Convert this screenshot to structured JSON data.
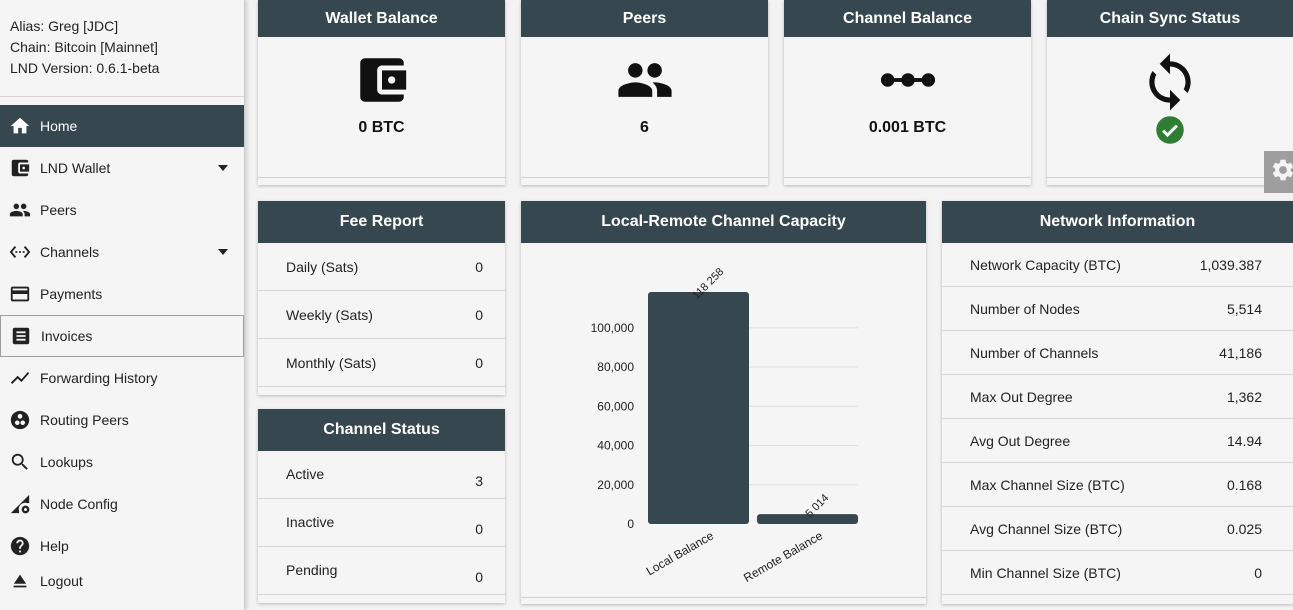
{
  "node": {
    "alias": "Alias: Greg [JDC]",
    "chain": "Chain: Bitcoin [Mainnet]",
    "version": "LND Version: 0.6.1-beta"
  },
  "nav": [
    {
      "label": "Home",
      "icon": "home-icon"
    },
    {
      "label": "LND Wallet",
      "icon": "wallet-icon"
    },
    {
      "label": "Peers",
      "icon": "people-icon"
    },
    {
      "label": "Channels",
      "icon": "channels-icon"
    },
    {
      "label": "Payments",
      "icon": "credit-card-icon"
    },
    {
      "label": "Invoices",
      "icon": "receipt-icon"
    },
    {
      "label": "Forwarding History",
      "icon": "timeline-icon"
    },
    {
      "label": "Routing Peers",
      "icon": "routing-peers-icon"
    },
    {
      "label": "Lookups",
      "icon": "search-icon"
    },
    {
      "label": "Node Config",
      "icon": "node-config-icon"
    },
    {
      "label": "Help",
      "icon": "help-icon"
    },
    {
      "label": "Logout",
      "icon": "eject-icon"
    }
  ],
  "tiles": {
    "wallet": {
      "title": "Wallet Balance",
      "value": "0 BTC"
    },
    "peers": {
      "title": "Peers",
      "value": "6"
    },
    "channel": {
      "title": "Channel Balance",
      "value": "0.001 BTC"
    },
    "sync": {
      "title": "Chain Sync Status",
      "status_color": "#2e7d32"
    }
  },
  "fee_report": {
    "title": "Fee Report",
    "rows": [
      {
        "label": "Daily (Sats)",
        "value": "0"
      },
      {
        "label": "Weekly (Sats)",
        "value": "0"
      },
      {
        "label": "Monthly (Sats)",
        "value": "0"
      }
    ]
  },
  "channel_status": {
    "title": "Channel Status",
    "rows": [
      {
        "label": "Active",
        "value": "3"
      },
      {
        "label": "Inactive",
        "value": "0"
      },
      {
        "label": "Pending",
        "value": "0"
      }
    ]
  },
  "capacity": {
    "title": "Local-Remote Channel Capacity"
  },
  "network": {
    "title": "Network Information",
    "rows": [
      {
        "label": "Network Capacity (BTC)",
        "value": "1,039.387"
      },
      {
        "label": "Number of Nodes",
        "value": "5,514"
      },
      {
        "label": "Number of Channels",
        "value": "41,186"
      },
      {
        "label": "Max Out Degree",
        "value": "1,362"
      },
      {
        "label": "Avg Out Degree",
        "value": "14.94"
      },
      {
        "label": "Max Channel Size (BTC)",
        "value": "0.168"
      },
      {
        "label": "Avg Channel Size (BTC)",
        "value": "0.025"
      },
      {
        "label": "Min Channel Size (BTC)",
        "value": "0"
      }
    ]
  },
  "chart_data": {
    "type": "bar",
    "categories": [
      "Local Balance",
      "Remote Balance"
    ],
    "values": [
      118258,
      5014
    ],
    "value_labels": [
      "118 258",
      "5 014"
    ],
    "ylim": [
      0,
      118258
    ],
    "yticks": [
      0,
      20000,
      40000,
      60000,
      80000,
      100000
    ],
    "ytick_labels": [
      "0",
      "20,000",
      "40,000",
      "60,000",
      "80,000",
      "100,000"
    ],
    "bar_color": "#37474f",
    "grid": true
  },
  "colors": {
    "accent": "#37474f",
    "background": "#f5f5f5"
  }
}
